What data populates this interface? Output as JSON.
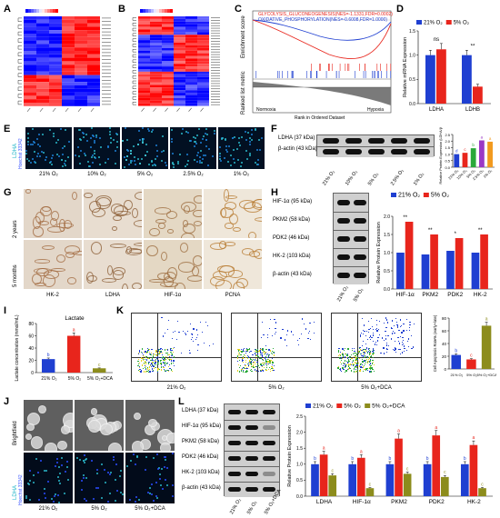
{
  "labels": {
    "A": "A",
    "B": "B",
    "C": "C",
    "D": "D",
    "E": "E",
    "F": "F",
    "G": "G",
    "H": "H",
    "I": "I",
    "J": "J",
    "K": "K",
    "L": "L"
  },
  "colors": {
    "blue": "#1f3fd1",
    "red": "#e8251c",
    "olive": "#8c8c1c"
  },
  "gsea": {
    "ylabel": "Enrichment score",
    "ylabel2": "Ranked list metric",
    "xlabel": "Rank in Ordered Dataset",
    "legend1": "GLYCOLYSIS_GLUCONEOGENESIS(NES=-1.1331,FDR=0.0002)",
    "legend2": "OXIDATIVE_PHOSPHORYLATION(NES=-0.6008,FDR=1.0000)",
    "left": "Normoxia",
    "right": "Hypoxia",
    "xticks": [
      "0",
      "2,000",
      "4,000",
      "6,000",
      "8,000",
      "10,000",
      "12,000"
    ]
  },
  "panelE": {
    "stain1": "LDHA",
    "stain2": "Hoechst 33342",
    "conditions": [
      "21% O₂",
      "10% O₂",
      "5% O₂",
      "2.5% O₂",
      "1% O₂"
    ]
  },
  "panelF": {
    "blots": [
      "LDHA (37 kDa)",
      "β-actin (43 kDa)"
    ],
    "lanes": [
      "21% O₂",
      "10% O₂",
      "5% O₂",
      "2.5% O₂",
      "1% O₂"
    ],
    "ylabel": "Relative Protein Expression (LDHA/β-actin)"
  },
  "panelG": {
    "rows": [
      "2 years",
      "5 months"
    ],
    "cols": [
      "HK-2",
      "LDHA",
      "HIF-1α",
      "PCNA"
    ]
  },
  "panelH": {
    "blots": [
      "HIF-1α (95 kDa)",
      "PKM2 (58 kDa)",
      "PDK2 (46 kDa)",
      "HK-2 (103 kDa)",
      "β-actin (43 kDa)"
    ],
    "lanes": [
      "21% O₂",
      "5% O₂"
    ]
  },
  "panelI": {
    "title": "Lactate"
  },
  "panelK": {
    "flow_labels": [
      "21% O₂",
      "5% O₂",
      "5% O₂+DCA"
    ],
    "ylabel": "Cell Apoptosis Rate% (early+late)"
  },
  "panelJ": {
    "row1": "Brightfield",
    "stain1": "LDHA",
    "stain2": "Hoechst 33342",
    "conditions": [
      "21% O₂",
      "5% O₂",
      "5% O₂+DCA"
    ]
  },
  "panelL": {
    "blots": [
      "LDHA (37 kDa)",
      "HIF-1α (95 kDa)",
      "PKM2 (58 kDa)",
      "PDK2 (46 kDa)",
      "HK-2 (103 kDa)",
      "β-actin (43 kDa)"
    ],
    "lanes": [
      "21% O₂",
      "5% O₂",
      "5% O₂+DCA"
    ]
  },
  "chart_data": [
    {
      "id": "D",
      "type": "bar",
      "categories": [
        "LDHA",
        "LDHB"
      ],
      "series": [
        {
          "name": "21% O₂",
          "values": [
            1.0,
            1.0
          ],
          "errors": [
            0.1,
            0.1
          ],
          "color": "#1f3fd1"
        },
        {
          "name": "5% O₂",
          "values": [
            1.12,
            0.35
          ],
          "errors": [
            0.12,
            0.05
          ],
          "color": "#e8251c"
        }
      ],
      "ylabel": "Relative mRNA Expression",
      "ylim": [
        0,
        1.5
      ],
      "yticks": [
        "0.0",
        "0.5",
        "1.0",
        "1.5"
      ],
      "annotations": [
        "ns",
        "**"
      ],
      "legend": "top"
    },
    {
      "id": "F",
      "type": "bar",
      "categories": [
        "21% O₂",
        "10% O₂",
        "5% O₂",
        "2.5% O₂",
        "1% O₂"
      ],
      "values": [
        1.0,
        1.1,
        1.45,
        2.05,
        1.95
      ],
      "colors": [
        "#1f3fd1",
        "#e8251c",
        "#2aa83a",
        "#9b39c6",
        "#f29a1f"
      ],
      "letters": [
        "d",
        "c",
        "b",
        "a",
        "a"
      ],
      "ylabel": "Relative Protein Expression (LDHA/β-actin)",
      "ylim": [
        0,
        2.5
      ],
      "yticks": [
        "0.0",
        "0.5",
        "1.0",
        "1.5",
        "2.0",
        "2.5"
      ]
    },
    {
      "id": "H",
      "type": "bar",
      "categories": [
        "HIF-1α",
        "PKM2",
        "PDK2",
        "HK-2"
      ],
      "series": [
        {
          "name": "21% O₂",
          "values": [
            1.0,
            0.95,
            1.05,
            1.0
          ],
          "color": "#1f3fd1"
        },
        {
          "name": "5% O₂",
          "values": [
            1.85,
            1.5,
            1.4,
            1.5
          ],
          "color": "#e8251c"
        }
      ],
      "annotations": [
        "**",
        "**",
        "*",
        "**"
      ],
      "ylabel": "Relative Protein Expression",
      "ylim": [
        0,
        2.0
      ],
      "yticks": [
        "0.0",
        "0.5",
        "1.0",
        "1.5",
        "2.0"
      ],
      "legend": "top"
    },
    {
      "id": "I",
      "type": "bar",
      "title": "Lactate",
      "categories": [
        "21% O₂",
        "5% O₂",
        "5% O₂+DCA"
      ],
      "values": [
        22,
        60,
        7
      ],
      "colors": [
        "#1f3fd1",
        "#e8251c",
        "#8c8c1c"
      ],
      "letters": [
        "b",
        "a",
        "c"
      ],
      "ylabel": "Lactate concentration (mmol/mL)",
      "ylim": [
        0,
        80
      ],
      "yticks": [
        "0",
        "20",
        "40",
        "60",
        "80"
      ]
    },
    {
      "id": "K",
      "type": "bar",
      "categories": [
        "21% O₂",
        "5% O₂",
        "5% O₂+DCA"
      ],
      "values": [
        22,
        15,
        68
      ],
      "colors": [
        "#1f3fd1",
        "#e8251c",
        "#8c8c1c"
      ],
      "letters": [
        "b",
        "c",
        "a"
      ],
      "ylabel": "Cell Apoptosis Rate% (early+late)",
      "ylim": [
        0,
        80
      ],
      "yticks": [
        "0",
        "20",
        "40",
        "60",
        "80"
      ]
    },
    {
      "id": "L",
      "type": "bar",
      "categories": [
        "LDHA",
        "HIF-1α",
        "PKM2",
        "PDK2",
        "HK-2"
      ],
      "series": [
        {
          "name": "21% O₂",
          "values": [
            1.0,
            1.0,
            1.0,
            1.0,
            1.0
          ],
          "color": "#1f3fd1"
        },
        {
          "name": "5% O₂",
          "values": [
            1.3,
            1.2,
            1.8,
            1.9,
            1.6
          ],
          "color": "#e8251c"
        },
        {
          "name": "5% O₂+DCA",
          "values": [
            0.65,
            0.25,
            0.7,
            0.6,
            0.25
          ],
          "color": "#8c8c1c"
        }
      ],
      "letters": [
        [
          "b",
          "a",
          "c"
        ],
        [
          "b",
          "a",
          "c"
        ],
        [
          "b",
          "a",
          "c"
        ],
        [
          "b",
          "a",
          "c"
        ],
        [
          "b",
          "a",
          "c"
        ]
      ],
      "ylabel": "Relative Protein Expression",
      "ylim": [
        0,
        2.5
      ],
      "yticks": [
        "0.0",
        "0.5",
        "1.0",
        "1.5",
        "2.0",
        "2.5"
      ],
      "legend": "top"
    }
  ]
}
